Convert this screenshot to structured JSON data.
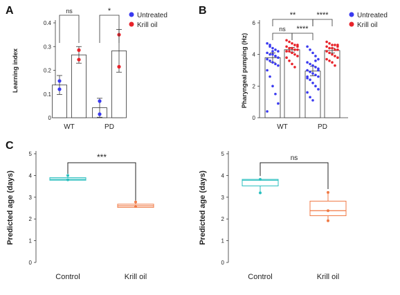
{
  "panels": [
    {
      "letter": "A"
    },
    {
      "letter": "B"
    },
    {
      "letter": "C"
    }
  ],
  "chart_data": [
    {
      "panel": "A",
      "type": "bar",
      "ylabel": "Learning index",
      "ylim": [
        0,
        0.4
      ],
      "yticks": [
        0,
        0.1,
        0.2,
        0.3,
        0.4
      ],
      "ytick_labels": [
        "0",
        "0.1",
        "0.2",
        "0.3",
        "0.4"
      ],
      "groups": [
        "WT",
        "PD"
      ],
      "legend": {
        "placement": "top-right",
        "entries": [
          {
            "label": "Untreated",
            "color": "#3a3af0"
          },
          {
            "label": "Krill oil",
            "color": "#e8232a"
          }
        ]
      },
      "series": [
        {
          "name": "Untreated",
          "color": "#3a3af0",
          "values": [
            0.138,
            0.042
          ],
          "errors": [
            0.04,
            0.04
          ],
          "points": [
            [
              0.12,
              0.155
            ],
            [
              0.015,
              0.07
            ]
          ]
        },
        {
          "name": "Krill oil",
          "color": "#e8232a",
          "values": [
            0.265,
            0.282
          ],
          "errors": [
            0.035,
            0.09
          ],
          "points": [
            [
              0.285,
              0.245
            ],
            [
              0.35,
              0.215
            ]
          ]
        }
      ],
      "significance": [
        {
          "label": "ns",
          "between": [
            "WT Untreated",
            "WT Krill oil"
          ]
        },
        {
          "label": "*",
          "between": [
            "PD Untreated",
            "PD Krill oil"
          ]
        }
      ]
    },
    {
      "panel": "B",
      "type": "bar",
      "ylabel": "Pharyngeal pumping (Hz)",
      "ylim": [
        0,
        6
      ],
      "yticks": [
        0,
        2,
        4,
        6
      ],
      "ytick_labels": [
        "0",
        "2",
        "4",
        "6"
      ],
      "groups": [
        "WT",
        "PD"
      ],
      "legend": {
        "placement": "top-right",
        "entries": [
          {
            "label": "Untreated",
            "color": "#3a3af0"
          },
          {
            "label": "Krill oil",
            "color": "#e8232a"
          }
        ]
      },
      "series": [
        {
          "name": "Untreated",
          "color": "#3a3af0",
          "values": [
            3.8,
            2.95
          ],
          "errors": [
            0.3,
            0.3
          ],
          "points": [
            [
              4.7,
              4.5,
              4.4,
              4.3,
              4.2,
              4.1,
              4.0,
              4.0,
              3.9,
              3.8,
              3.7,
              3.6,
              3.5,
              3.4,
              3.3,
              3.0,
              2.6,
              2.0,
              1.5,
              0.9,
              0.4,
              4.6,
              4.2,
              3.9
            ],
            [
              4.5,
              4.3,
              4.1,
              3.9,
              3.7,
              3.5,
              3.4,
              3.3,
              3.2,
              3.1,
              3.0,
              2.9,
              2.8,
              2.7,
              2.6,
              2.5,
              2.4,
              2.2,
              2.0,
              1.8,
              1.6,
              1.3,
              1.1,
              3.6,
              3.0,
              2.6
            ]
          ]
        },
        {
          "name": "Krill oil",
          "color": "#e8232a",
          "values": [
            4.3,
            4.25
          ],
          "errors": [
            0.15,
            0.15
          ],
          "points": [
            [
              4.9,
              4.8,
              4.7,
              4.6,
              4.5,
              4.5,
              4.4,
              4.4,
              4.3,
              4.3,
              4.2,
              4.2,
              4.1,
              4.0,
              3.9,
              3.8,
              3.6,
              3.4,
              3.2,
              4.6
            ],
            [
              4.8,
              4.7,
              4.6,
              4.6,
              4.5,
              4.5,
              4.4,
              4.4,
              4.3,
              4.3,
              4.2,
              4.1,
              4.0,
              3.9,
              3.8,
              3.7,
              3.6,
              3.5,
              3.3,
              4.6
            ]
          ]
        }
      ],
      "significance": [
        {
          "label": "ns",
          "between": [
            "WT Untreated",
            "WT Krill oil"
          ]
        },
        {
          "label": "****",
          "between": [
            "WT Krill oil",
            "PD Untreated"
          ]
        },
        {
          "label": "**",
          "between": [
            "WT Untreated",
            "PD Untreated"
          ]
        },
        {
          "label": "****",
          "between": [
            "PD Untreated",
            "PD Krill oil"
          ]
        }
      ]
    },
    {
      "panel": "C-left",
      "type": "box",
      "ylabel": "Predicted age (days)",
      "ylim": [
        0,
        5
      ],
      "yticks": [
        0,
        1,
        2,
        3,
        4,
        5
      ],
      "ytick_labels": [
        "0",
        "1",
        "2",
        "3",
        "4",
        "5"
      ],
      "categories": [
        "Control",
        "Krill oil"
      ],
      "boxes": [
        {
          "category": "Control",
          "color": "#2bbfbf",
          "q1": 3.78,
          "median": 3.83,
          "q3": 3.9,
          "whisker_low": 3.78,
          "whisker_high": 3.95,
          "points": [
            4.0,
            3.8
          ]
        },
        {
          "category": "Krill oil",
          "color": "#f07a45",
          "q1": 2.53,
          "median": 2.6,
          "q3": 2.68,
          "whisker_low": 2.53,
          "whisker_high": 2.72,
          "points": [
            2.78,
            2.58
          ]
        }
      ],
      "significance": [
        {
          "label": "***",
          "between": [
            "Control",
            "Krill oil"
          ]
        }
      ]
    },
    {
      "panel": "C-right",
      "type": "box",
      "ylabel": "Predicted age (days)",
      "ylim": [
        0,
        5
      ],
      "yticks": [
        0,
        1,
        2,
        3,
        4,
        5
      ],
      "ytick_labels": [
        "0",
        "1",
        "2",
        "3",
        "4",
        "5"
      ],
      "categories": [
        "Control",
        "Krill oil"
      ],
      "boxes": [
        {
          "category": "Control",
          "color": "#2bbfbf",
          "q1": 3.52,
          "median": 3.78,
          "q3": 3.82,
          "whisker_low": 3.25,
          "whisker_high": 3.85,
          "points": [
            3.82,
            3.2
          ]
        },
        {
          "category": "Krill oil",
          "color": "#f07a45",
          "q1": 2.15,
          "median": 2.38,
          "q3": 2.82,
          "whisker_low": 1.95,
          "whisker_high": 3.25,
          "points": [
            3.22,
            2.38,
            1.92
          ]
        }
      ],
      "significance": [
        {
          "label": "ns",
          "between": [
            "Control",
            "Krill oil"
          ]
        }
      ]
    }
  ]
}
